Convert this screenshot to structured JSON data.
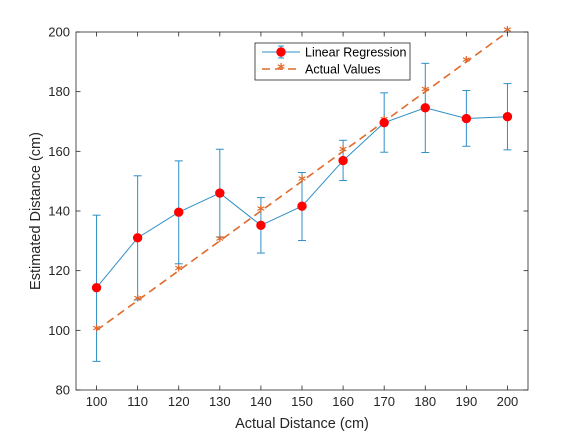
{
  "chart_data": {
    "type": "line",
    "x": [
      100,
      110,
      120,
      130,
      140,
      150,
      160,
      170,
      180,
      190,
      200
    ],
    "series": [
      {
        "name": "Linear Regression",
        "values": [
          114.3,
          131.0,
          139.6,
          146.0,
          135.2,
          141.6,
          156.9,
          169.6,
          174.6,
          171.0,
          171.6
        ],
        "err_upper": [
          138.6,
          151.8,
          156.8,
          160.7,
          144.5,
          152.9,
          163.7,
          179.6,
          189.5,
          180.4,
          182.7
        ],
        "err_lower": [
          89.6,
          110.2,
          122.3,
          131.3,
          125.9,
          130.1,
          150.2,
          159.7,
          159.6,
          161.7,
          160.5
        ],
        "color": "#2f8fc6",
        "marker_color": "#ff0000"
      },
      {
        "name": "Actual Values",
        "values": [
          100,
          110,
          120,
          130,
          140,
          150,
          160,
          170,
          180,
          190,
          200
        ],
        "color": "#e06a2c"
      }
    ],
    "xlabel": "Actual Distance (cm)",
    "ylabel": "Estimated Distance (cm)",
    "xlim": [
      95,
      205
    ],
    "ylim": [
      80,
      200
    ],
    "xticks": [
      100,
      110,
      120,
      130,
      140,
      150,
      160,
      170,
      180,
      190,
      200
    ],
    "yticks": [
      80,
      100,
      120,
      140,
      160,
      180,
      200
    ],
    "grid": false,
    "legend_position": "top-right"
  }
}
